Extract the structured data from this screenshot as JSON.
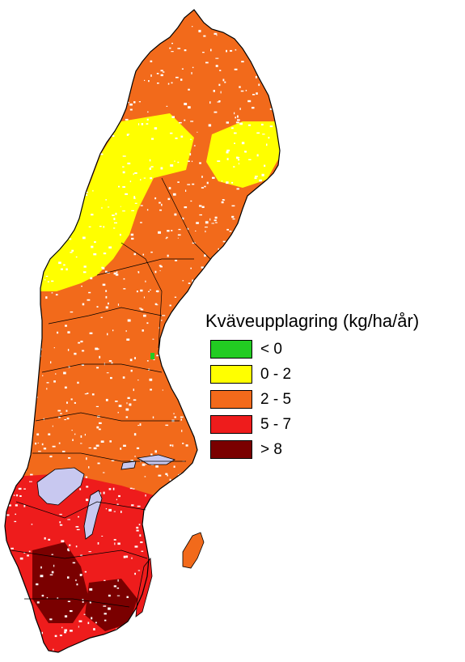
{
  "legend": {
    "title": "Kväveupplagring (kg/ha/år)",
    "items": [
      {
        "label": "< 0",
        "color": "#22cc22"
      },
      {
        "label": "0 - 2",
        "color": "#ffff00"
      },
      {
        "label": "2 - 5",
        "color": "#f26a1b"
      },
      {
        "label": "5 - 7",
        "color": "#ee1c1c"
      },
      {
        "label": "> 8",
        "color": "#7a0000"
      }
    ]
  },
  "map": {
    "colors": {
      "outline": "#000000",
      "lake": "#c8c8f0",
      "low": "#ffff00",
      "mid": "#f26a1b",
      "high": "#ee1c1c",
      "very_high": "#7a0000",
      "negative": "#22cc22"
    }
  }
}
